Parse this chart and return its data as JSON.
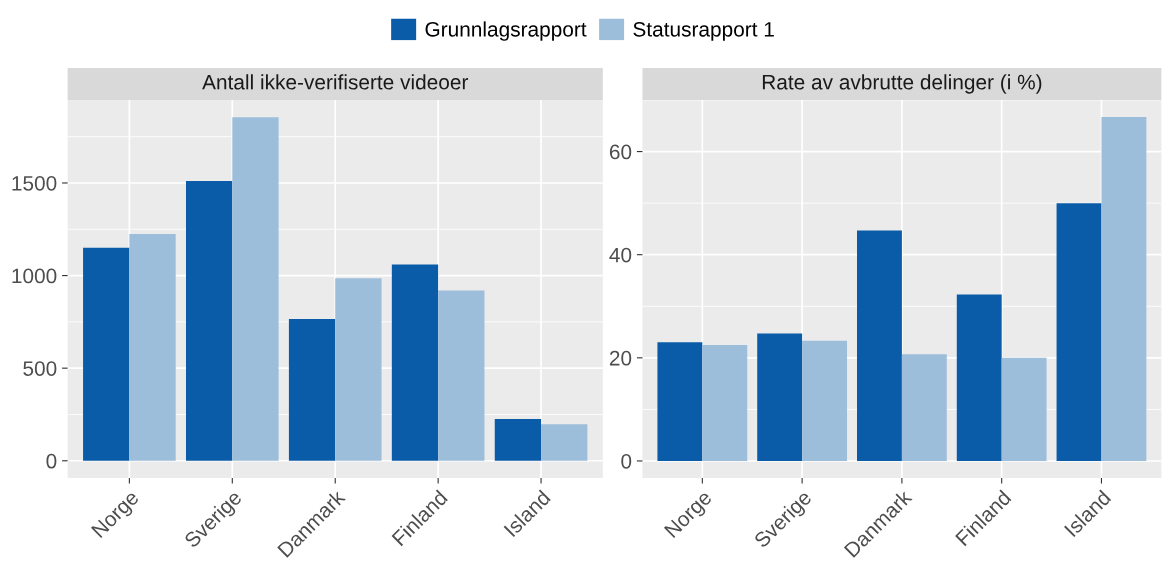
{
  "chart_data": [
    {
      "type": "bar",
      "title": "Antall ikke-verifiserte videoer",
      "categories": [
        "Norge",
        "Sverige",
        "Danmark",
        "Finland",
        "Island"
      ],
      "series": [
        {
          "name": "Grunnlagsrapport",
          "color": "#0b5ca8",
          "values": [
            1150,
            1510,
            765,
            1060,
            225
          ]
        },
        {
          "name": "Statusrapport 1",
          "color": "#9dbedb",
          "values": [
            1225,
            1855,
            985,
            920,
            197
          ]
        }
      ],
      "ylim": [
        -93,
        1948
      ],
      "yticks": [
        0,
        500,
        1000,
        1500
      ],
      "grid": true,
      "legend": "top"
    },
    {
      "type": "bar",
      "title": "Rate av avbrutte delinger (i %)",
      "categories": [
        "Norge",
        "Sverige",
        "Danmark",
        "Finland",
        "Island"
      ],
      "series": [
        {
          "color": "#0b5ca8",
          "values": [
            23.0,
            24.7,
            44.7,
            32.3,
            50.0
          ]
        },
        {
          "color": "#9dbedb",
          "values": [
            22.5,
            23.3,
            20.7,
            20.0,
            66.7
          ]
        }
      ],
      "ylim": [
        -3.3,
        70.0
      ],
      "yticks": [
        0,
        20,
        40,
        60
      ],
      "grid": true
    }
  ]
}
